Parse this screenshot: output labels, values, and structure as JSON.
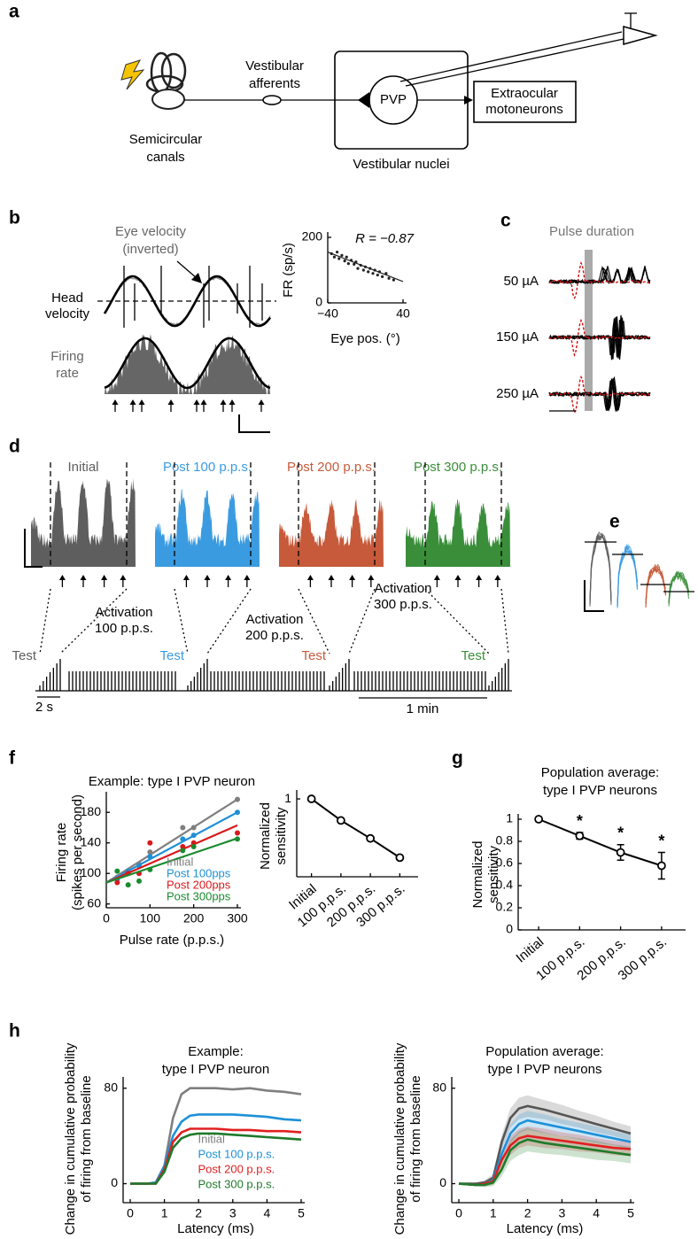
{
  "panel_labels": [
    "a",
    "b",
    "c",
    "d",
    "e",
    "f",
    "g",
    "h"
  ],
  "diagram_a": {
    "canals": [
      "Semicircular",
      "canals"
    ],
    "afferents": [
      "Vestibular",
      "afferents"
    ],
    "neuron": "PVP",
    "motoneurons": [
      "Extraocular",
      "motoneurons"
    ],
    "nuclei": "Vestibular nuclei"
  },
  "traces_b": {
    "eye_velocity": [
      "Eye velocity",
      "(inverted)"
    ],
    "head_velocity": [
      "Head",
      "velocity"
    ],
    "firing_rate": [
      "Firing",
      "rate"
    ]
  },
  "traces_c": {
    "title": "Pulse duration",
    "currents": [
      "50 µA",
      "150 µA",
      "250 µA"
    ]
  },
  "traces_d": {
    "conditions": [
      {
        "name": "Initial",
        "color": "#5e5e5e"
      },
      {
        "name": "Post 100 p.p.s.",
        "color": "#3b9be0"
      },
      {
        "name": "Post 200 p.p.s.",
        "color": "#c65a3a"
      },
      {
        "name": "Post 300 p.p.s.",
        "color": "#3a8e3a"
      }
    ],
    "test": "Test",
    "activations": [
      [
        "Activation",
        "100 p.p.s."
      ],
      [
        "Activation",
        "200 p.p.s."
      ],
      [
        "Activation",
        "300 p.p.s."
      ]
    ],
    "scale_time": "2 s",
    "scale_minute": "1 min"
  },
  "chart_data": [
    {
      "type": "scatter",
      "annotation": "R = −0.87",
      "ylabel": [
        "FR (sp/s)"
      ],
      "xlabel": "Eye pos. (°)",
      "xlim": [
        -40,
        40
      ],
      "xticks": [
        {
          "value": -40,
          "label": "−40"
        },
        40
      ],
      "ylim": [
        0,
        200
      ],
      "yticks": [
        0,
        200
      ],
      "x": [
        -36,
        -33,
        -30,
        -28,
        -25,
        -22,
        -20,
        -18,
        -15,
        -12,
        -10,
        -8,
        -5,
        -2,
        0,
        3,
        5,
        8,
        10,
        13,
        15,
        18,
        22,
        25,
        30
      ],
      "values": [
        150,
        140,
        155,
        135,
        145,
        128,
        140,
        120,
        130,
        118,
        125,
        105,
        115,
        100,
        110,
        95,
        105,
        90,
        100,
        85,
        95,
        80,
        90,
        75,
        70
      ],
      "color": "#222222",
      "fit": {
        "x": [
          -40,
          40
        ],
        "values": [
          155,
          65
        ]
      }
    },
    {
      "type": "scatter",
      "title": [
        "Example: type I PVP neuron"
      ],
      "ylabel": [
        "Firing rate",
        "(spikes per second)"
      ],
      "xlabel": "Pulse rate (p.p.s.)",
      "xlim": [
        0,
        300
      ],
      "xticks": [
        0,
        100,
        200,
        300
      ],
      "ylim": [
        55,
        200
      ],
      "yticks": [
        60,
        100,
        140,
        180
      ],
      "x": [
        25,
        50,
        75,
        100,
        175,
        200,
        300
      ],
      "fit_x": [
        0,
        300
      ],
      "legend": "lower right",
      "series": [
        {
          "name": "Initial",
          "color": "#7f7f7f",
          "values": [
            95,
            100,
            112,
            128,
            160,
            160,
            197
          ],
          "fit": [
            88,
            197
          ]
        },
        {
          "name": "Post 100pps",
          "color": "#1f8fd6",
          "values": [
            92,
            103,
            110,
            122,
            145,
            150,
            180
          ],
          "fit": [
            88,
            180
          ]
        },
        {
          "name": "Post 200pps",
          "color": "#d7191c",
          "values": [
            88,
            100,
            100,
            140,
            135,
            140,
            153
          ],
          "fit": [
            88,
            163
          ]
        },
        {
          "name": "Post 300pps",
          "color": "#1a8a2e",
          "values": [
            103,
            85,
            90,
            105,
            130,
            135,
            145
          ],
          "fit": [
            88,
            146
          ]
        }
      ]
    },
    {
      "type": "line",
      "ylabel": [
        "Normalized",
        "sensitivity"
      ],
      "categories": [
        "Initial",
        "100 p.p.s.",
        "200 p.p.s.",
        "300 p.p.s."
      ],
      "values": [
        1,
        0.82,
        0.67,
        0.51
      ],
      "ylim": [
        0.35,
        1.03
      ],
      "yticks": [
        1
      ],
      "color": "#000000"
    },
    {
      "type": "line",
      "title": [
        "Population average:",
        "type I PVP neurons"
      ],
      "ylabel": [
        "Normalized",
        "sensitivity"
      ],
      "categories": [
        "Initial",
        "100 p.p.s.",
        "200 p.p.s.",
        "300 p.p.s."
      ],
      "values": [
        1,
        0.85,
        0.7,
        0.58
      ],
      "errors": [
        0,
        0.03,
        0.07,
        0.12
      ],
      "significance": [
        null,
        "*",
        "*",
        "*"
      ],
      "ylim": [
        0,
        1
      ],
      "yticks": [
        0,
        0.2,
        0.4,
        0.6,
        0.8,
        1
      ],
      "color": "#000000"
    },
    {
      "type": "line",
      "title": [
        "Example:",
        "type I PVP neuron"
      ],
      "ylabel": [
        "Change in cumulative probability",
        "of firing from baseline"
      ],
      "xlabel": "Latency (ms)",
      "xlim": [
        0,
        5
      ],
      "xticks": [
        0,
        1,
        2,
        3,
        4,
        5
      ],
      "ylim": [
        -10,
        85
      ],
      "yticks": [
        0,
        80
      ],
      "legend": "lower center",
      "x": [
        0,
        0.5,
        0.75,
        1,
        1.25,
        1.5,
        1.75,
        2,
        2.5,
        3,
        3.5,
        4,
        4.5,
        5
      ],
      "series": [
        {
          "name": "Initial",
          "color": "#7f7f7f",
          "values": [
            0,
            0,
            1,
            15,
            55,
            75,
            80,
            80,
            80,
            79,
            80,
            78,
            77,
            75
          ]
        },
        {
          "name": "Post 100 p.p.s.",
          "color": "#1e90d8",
          "values": [
            0,
            0,
            1,
            15,
            40,
            52,
            57,
            58,
            58,
            58,
            57,
            56,
            54,
            53
          ]
        },
        {
          "name": "Post 200 p.p.s.",
          "color": "#e02020",
          "values": [
            0,
            0,
            0,
            12,
            35,
            43,
            46,
            46,
            46,
            45,
            45,
            44,
            44,
            43
          ]
        },
        {
          "name": "Post 300 p.p.s.",
          "color": "#1f7a2a",
          "values": [
            0,
            0,
            0,
            10,
            30,
            38,
            41,
            42,
            42,
            41,
            40,
            39,
            38,
            37
          ]
        }
      ]
    },
    {
      "type": "line",
      "title": [
        "Population average:",
        "type I PVP neurons"
      ],
      "ylabel": [
        "Change in cumulative probability",
        "of firing from baseline"
      ],
      "xlabel": "Latency (ms)",
      "xlim": [
        0,
        5
      ],
      "xticks": [
        0,
        1,
        2,
        3,
        4,
        5
      ],
      "ylim": [
        -10,
        85
      ],
      "yticks": [
        0,
        80
      ],
      "x": [
        0,
        0.5,
        0.75,
        1,
        1.25,
        1.5,
        1.75,
        2,
        2.5,
        3,
        3.5,
        4,
        4.5,
        5
      ],
      "series": [
        {
          "color": "#555555",
          "values": [
            0,
            0,
            1,
            5,
            35,
            55,
            63,
            65,
            62,
            58,
            54,
            50,
            46,
            42
          ],
          "errors": [
            1,
            1,
            2,
            3,
            6,
            8,
            9,
            9,
            8,
            8,
            7,
            7,
            6,
            6
          ]
        },
        {
          "color": "#1e90d8",
          "values": [
            0,
            -1,
            0,
            3,
            25,
            42,
            50,
            53,
            50,
            47,
            44,
            41,
            38,
            35
          ],
          "errors": [
            1,
            1,
            2,
            3,
            6,
            8,
            8,
            8,
            8,
            7,
            7,
            7,
            6,
            6
          ]
        },
        {
          "color": "#e02020",
          "values": [
            0,
            -1,
            0,
            2,
            20,
            32,
            38,
            40,
            38,
            36,
            34,
            32,
            30,
            29
          ],
          "errors": [
            1,
            1,
            2,
            3,
            6,
            8,
            8,
            8,
            8,
            7,
            7,
            6,
            6,
            6
          ]
        },
        {
          "color": "#1f7a2a",
          "values": [
            0,
            -1,
            -1,
            1,
            12,
            28,
            34,
            37,
            34,
            32,
            30,
            28,
            26,
            24
          ],
          "errors": [
            1,
            1,
            2,
            3,
            6,
            9,
            10,
            10,
            9,
            8,
            8,
            8,
            7,
            7
          ]
        }
      ]
    }
  ]
}
